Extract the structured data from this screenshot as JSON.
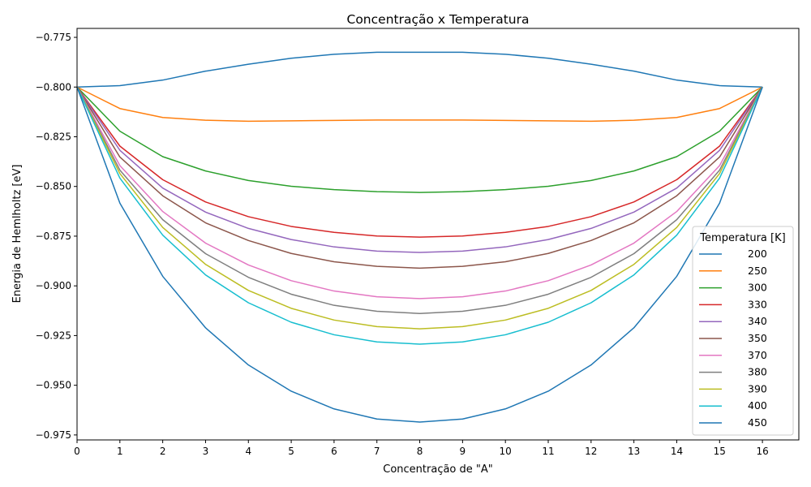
{
  "chart_data": {
    "type": "line",
    "title": "Concentração x Temperatura",
    "xlabel": "Concentração de \"A\"",
    "ylabel": "Energia de Hemlholtz [eV]",
    "x": [
      0,
      1,
      2,
      3,
      4,
      5,
      6,
      7,
      8,
      9,
      10,
      11,
      12,
      13,
      14,
      15,
      16
    ],
    "x_ticks": [
      0,
      1,
      2,
      3,
      4,
      5,
      6,
      7,
      8,
      9,
      10,
      11,
      12,
      13,
      14,
      15,
      16
    ],
    "x_tick_labels": [
      "0",
      "1",
      "2",
      "3",
      "4",
      "5",
      "6",
      "7",
      "8",
      "9",
      "10",
      "11",
      "12",
      "13",
      "14",
      "15",
      "16"
    ],
    "xlim": [
      0,
      16.85
    ],
    "y_ticks": [
      -0.775,
      -0.8,
      -0.825,
      -0.85,
      -0.875,
      -0.9,
      -0.925,
      -0.95,
      -0.975
    ],
    "y_tick_labels": [
      "−0.775",
      "−0.800",
      "−0.825",
      "−0.850",
      "−0.875",
      "−0.900",
      "−0.925",
      "−0.950",
      "−0.975"
    ],
    "ylim": [
      -0.9775,
      -0.7705
    ],
    "grid": false,
    "legend": {
      "title": "Temperatura [K]",
      "placement": "lower-right"
    },
    "series": [
      {
        "name": "200",
        "color": "#1f77b4",
        "values": [
          -0.8,
          -0.7993,
          -0.7965,
          -0.792,
          -0.7885,
          -0.7855,
          -0.7835,
          -0.7825,
          -0.7825,
          -0.7825,
          -0.7835,
          -0.7855,
          -0.7885,
          -0.792,
          -0.7965,
          -0.7993,
          -0.8
        ]
      },
      {
        "name": "250",
        "color": "#ff7f0e",
        "values": [
          -0.8,
          -0.8108,
          -0.8153,
          -0.8167,
          -0.8172,
          -0.817,
          -0.8168,
          -0.8166,
          -0.8166,
          -0.8166,
          -0.8168,
          -0.817,
          -0.8172,
          -0.8167,
          -0.8153,
          -0.8108,
          -0.8
        ]
      },
      {
        "name": "300",
        "color": "#2ca02c",
        "values": [
          -0.8,
          -0.8222,
          -0.835,
          -0.8422,
          -0.847,
          -0.8499,
          -0.8516,
          -0.8526,
          -0.853,
          -0.8526,
          -0.8516,
          -0.8499,
          -0.847,
          -0.8422,
          -0.835,
          -0.8222,
          -0.8
        ]
      },
      {
        "name": "330",
        "color": "#d62728",
        "values": [
          -0.8,
          -0.8297,
          -0.8466,
          -0.8578,
          -0.8652,
          -0.8701,
          -0.8731,
          -0.8749,
          -0.8755,
          -0.8749,
          -0.8731,
          -0.8701,
          -0.8652,
          -0.8578,
          -0.8466,
          -0.8297,
          -0.8
        ]
      },
      {
        "name": "340",
        "color": "#9467bd",
        "values": [
          -0.8,
          -0.8318,
          -0.8508,
          -0.8629,
          -0.8711,
          -0.8767,
          -0.8804,
          -0.8825,
          -0.8832,
          -0.8825,
          -0.8804,
          -0.8767,
          -0.8711,
          -0.8629,
          -0.8508,
          -0.8318,
          -0.8
        ]
      },
      {
        "name": "350",
        "color": "#8c564b",
        "values": [
          -0.8,
          -0.8352,
          -0.8547,
          -0.8683,
          -0.8772,
          -0.8837,
          -0.8879,
          -0.8902,
          -0.8911,
          -0.8902,
          -0.8879,
          -0.8837,
          -0.8772,
          -0.8683,
          -0.8547,
          -0.8352,
          -0.8
        ]
      },
      {
        "name": "370",
        "color": "#e377c2",
        "values": [
          -0.8,
          -0.8395,
          -0.8626,
          -0.8785,
          -0.8895,
          -0.8974,
          -0.9026,
          -0.9055,
          -0.9064,
          -0.9055,
          -0.9026,
          -0.8974,
          -0.8895,
          -0.8785,
          -0.8626,
          -0.8395,
          -0.8
        ]
      },
      {
        "name": "380",
        "color": "#7f7f7f",
        "values": [
          -0.8,
          -0.8418,
          -0.8667,
          -0.8838,
          -0.8957,
          -0.9042,
          -0.9098,
          -0.9128,
          -0.9139,
          -0.9128,
          -0.9098,
          -0.9042,
          -0.8957,
          -0.8838,
          -0.8667,
          -0.8418,
          -0.8
        ]
      },
      {
        "name": "390",
        "color": "#bcbd22",
        "values": [
          -0.8,
          -0.8435,
          -0.8706,
          -0.8892,
          -0.9023,
          -0.9113,
          -0.9172,
          -0.9205,
          -0.9216,
          -0.9205,
          -0.9172,
          -0.9113,
          -0.9023,
          -0.8892,
          -0.8706,
          -0.8435,
          -0.8
        ]
      },
      {
        "name": "400",
        "color": "#17becf",
        "values": [
          -0.8,
          -0.8458,
          -0.8745,
          -0.8945,
          -0.9085,
          -0.9183,
          -0.9246,
          -0.9282,
          -0.9293,
          -0.9282,
          -0.9246,
          -0.9183,
          -0.9085,
          -0.8945,
          -0.8745,
          -0.8458,
          -0.8
        ]
      },
      {
        "name": "450",
        "color": "#1f77b4",
        "values": [
          -0.8,
          -0.8584,
          -0.8952,
          -0.9211,
          -0.9398,
          -0.953,
          -0.9619,
          -0.967,
          -0.9685,
          -0.967,
          -0.9619,
          -0.953,
          -0.9398,
          -0.9211,
          -0.8952,
          -0.8584,
          -0.8
        ]
      }
    ]
  }
}
